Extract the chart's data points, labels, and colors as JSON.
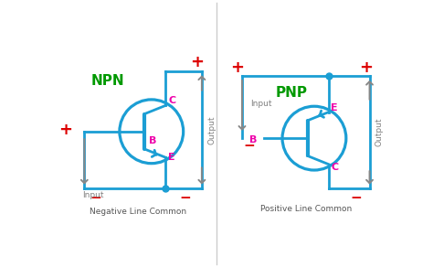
{
  "fig_width": 4.74,
  "fig_height": 2.92,
  "dpi": 100,
  "bg_color": "#ffffff",
  "line_color": "#1b9ed4",
  "line_width": 2.0,
  "arrow_color": "#888888",
  "red_color": "#dd0000",
  "green_color": "#009900",
  "magenta_color": "#ee00aa",
  "title_npn": "NPN",
  "title_pnp": "PNP",
  "label_neg_common": "Negative Line Common",
  "label_pos_common": "Positive Line Common",
  "label_output": "Output",
  "label_input": "Input",
  "label_b": "B",
  "label_c": "C",
  "label_e": "E"
}
